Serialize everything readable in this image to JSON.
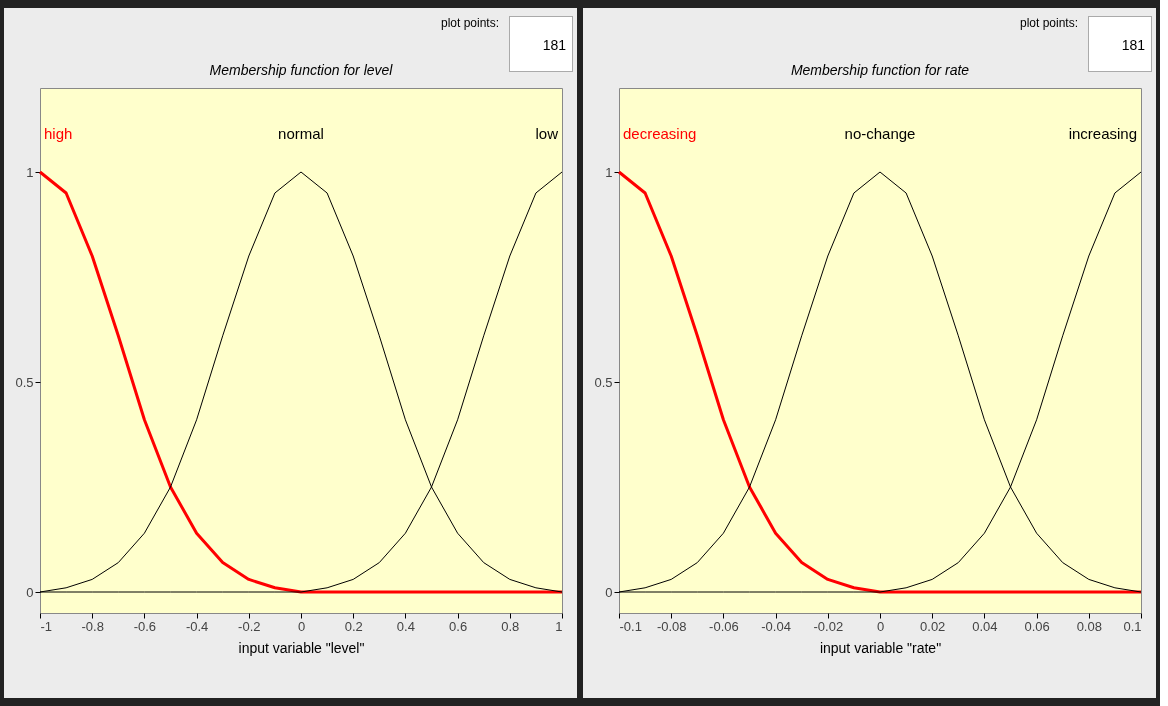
{
  "chart_data": [
    {
      "type": "line",
      "title": "Membership function for level",
      "xlabel": "input variable \"level\"",
      "x": [
        -1,
        -0.9,
        -0.8,
        -0.7,
        -0.6,
        -0.5,
        -0.4,
        -0.3,
        -0.2,
        -0.1,
        0,
        0.1,
        0.2,
        0.3,
        0.4,
        0.5,
        0.6,
        0.7,
        0.8,
        0.9,
        1
      ],
      "series": [
        {
          "name": "high",
          "color": "#ff0000",
          "values": [
            1,
            0.95,
            0.8,
            0.61,
            0.41,
            0.25,
            0.14,
            0.07,
            0.03,
            0.01,
            0,
            0,
            0,
            0,
            0,
            0,
            0,
            0,
            0,
            0,
            0
          ]
        },
        {
          "name": "normal",
          "color": "#000000",
          "values": [
            0,
            0.01,
            0.03,
            0.07,
            0.14,
            0.25,
            0.41,
            0.61,
            0.8,
            0.95,
            1,
            0.95,
            0.8,
            0.61,
            0.41,
            0.25,
            0.14,
            0.07,
            0.03,
            0.01,
            0
          ]
        },
        {
          "name": "low",
          "color": "#000000",
          "values": [
            0,
            0,
            0,
            0,
            0,
            0,
            0,
            0,
            0,
            0,
            0,
            0.01,
            0.03,
            0.07,
            0.14,
            0.25,
            0.41,
            0.61,
            0.8,
            0.95,
            1
          ]
        }
      ],
      "xlim": [
        -1,
        1
      ],
      "xticks": [
        -1,
        -0.8,
        -0.6,
        -0.4,
        -0.2,
        0,
        0.2,
        0.4,
        0.6,
        0.8,
        1
      ],
      "ylim": [
        -0.05,
        1.2
      ],
      "yticks": [
        0,
        0.5,
        1
      ],
      "annotations": [
        "plot points:",
        "181"
      ],
      "grid": false,
      "marker": "none",
      "line_style": "solid"
    },
    {
      "type": "line",
      "title": "Membership function for rate",
      "xlabel": "input variable \"rate\"",
      "x": [
        -0.1,
        -0.09,
        -0.08,
        -0.07,
        -0.06,
        -0.05,
        -0.04,
        -0.03,
        -0.02,
        -0.01,
        0,
        0.01,
        0.02,
        0.03,
        0.04,
        0.05,
        0.06,
        0.07,
        0.08,
        0.09,
        0.1
      ],
      "series": [
        {
          "name": "decreasing",
          "color": "#ff0000",
          "values": [
            1,
            0.95,
            0.8,
            0.61,
            0.41,
            0.25,
            0.14,
            0.07,
            0.03,
            0.01,
            0,
            0,
            0,
            0,
            0,
            0,
            0,
            0,
            0,
            0,
            0
          ]
        },
        {
          "name": "no-change",
          "color": "#000000",
          "values": [
            0,
            0.01,
            0.03,
            0.07,
            0.14,
            0.25,
            0.41,
            0.61,
            0.8,
            0.95,
            1,
            0.95,
            0.8,
            0.61,
            0.41,
            0.25,
            0.14,
            0.07,
            0.03,
            0.01,
            0
          ]
        },
        {
          "name": "increasing",
          "color": "#000000",
          "values": [
            0,
            0,
            0,
            0,
            0,
            0,
            0,
            0,
            0,
            0,
            0,
            0.01,
            0.03,
            0.07,
            0.14,
            0.25,
            0.41,
            0.61,
            0.8,
            0.95,
            1
          ]
        }
      ],
      "xlim": [
        -0.1,
        0.1
      ],
      "xticks": [
        -0.1,
        -0.08,
        -0.06,
        -0.04,
        -0.02,
        0,
        0.02,
        0.04,
        0.06,
        0.08,
        0.1
      ],
      "ylim": [
        -0.05,
        1.2
      ],
      "yticks": [
        0,
        0.5,
        1
      ],
      "annotations": [
        "plot points:",
        "181"
      ],
      "grid": false,
      "marker": "none",
      "line_style": "solid"
    }
  ]
}
